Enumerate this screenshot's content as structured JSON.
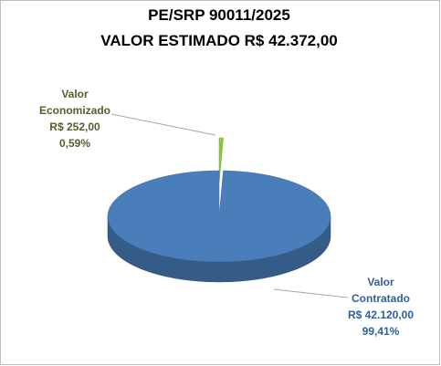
{
  "chart_data": {
    "type": "pie",
    "title": "PE/SRP 90011/2025",
    "subtitle": "VALOR ESTIMADO R$ 42.372,00",
    "categories": [
      "Valor Economizado",
      "Valor Contratado"
    ],
    "values": [
      252,
      42120
    ],
    "value_labels": [
      "R$ 252,00",
      "R$ 42.120,00"
    ],
    "percents": [
      0.59,
      99.41
    ],
    "percent_labels": [
      "0,59%",
      "99,41%"
    ],
    "colors": [
      "#8cc63e",
      "#4a7ebb"
    ]
  }
}
